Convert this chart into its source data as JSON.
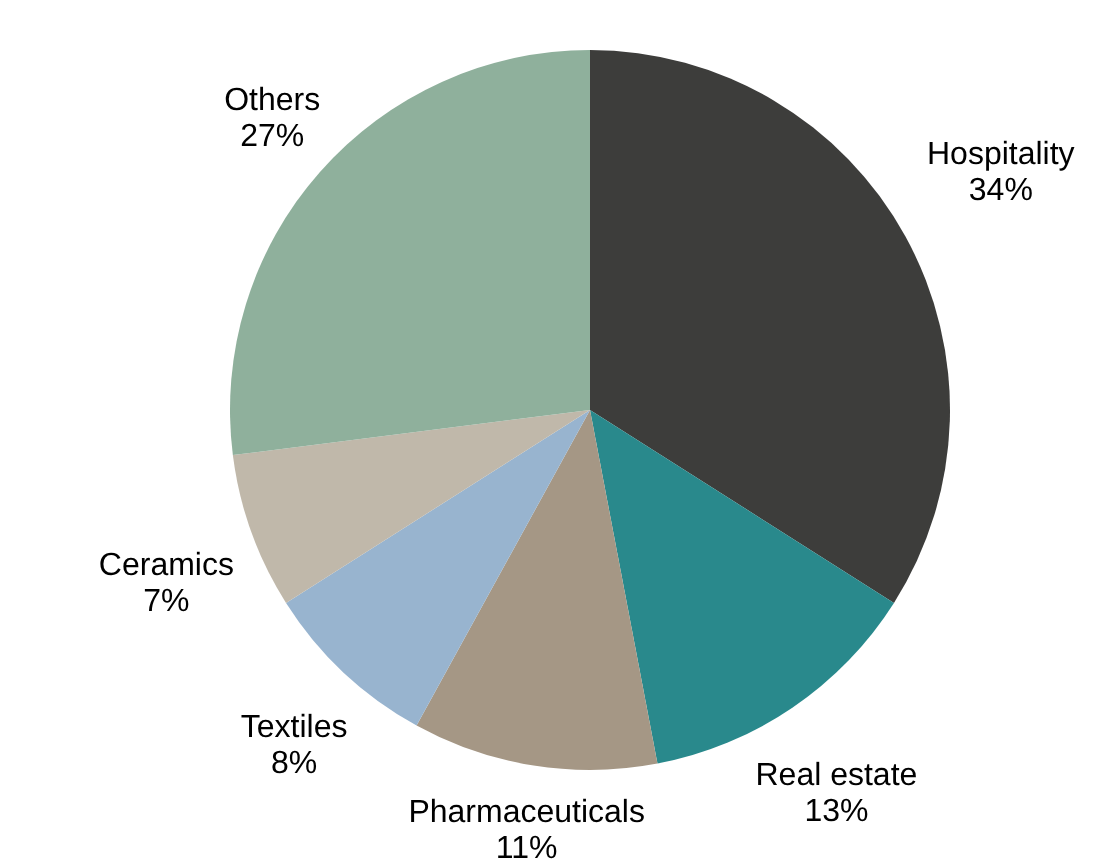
{
  "chart_data": {
    "type": "pie",
    "categories": [
      "Hospitality",
      "Real estate",
      "Pharmaceuticals",
      "Textiles",
      "Ceramics",
      "Others"
    ],
    "values": [
      34,
      13,
      11,
      8,
      7,
      27
    ],
    "value_labels": [
      "34%",
      "13%",
      "11%",
      "8%",
      "7%",
      "27%"
    ],
    "colors": [
      "#3d3d3b",
      "#29898c",
      "#a59785",
      "#98b4cf",
      "#c0b8aa",
      "#8fb09c"
    ],
    "legend": false
  }
}
